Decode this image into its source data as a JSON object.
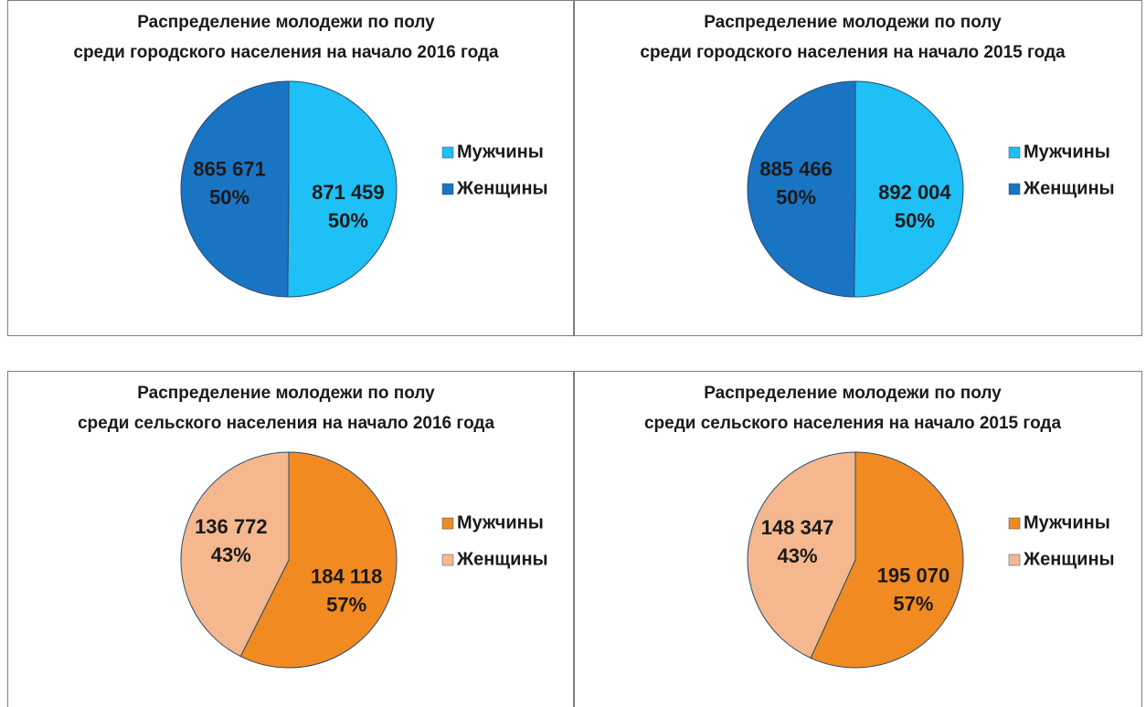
{
  "chart_data": [
    {
      "type": "pie",
      "title": [
        "Распределение молодежи по полу",
        "среди городского населения на начало 2016 года"
      ],
      "categories": [
        "Мужчины",
        "Женщины"
      ],
      "values": [
        871459,
        865671
      ],
      "value_labels": [
        "871 459",
        "865 671"
      ],
      "percentages": [
        50,
        50
      ],
      "percent_labels": [
        "50%",
        "50%"
      ],
      "colors": [
        "#1ec0f5",
        "#1a74c4"
      ],
      "legend": "right"
    },
    {
      "type": "pie",
      "title": [
        "Распределение молодежи по полу",
        "среди городского населения на начало 2015 года"
      ],
      "categories": [
        "Мужчины",
        "Женщины"
      ],
      "values": [
        892004,
        885466
      ],
      "value_labels": [
        "892 004",
        "885 466"
      ],
      "percentages": [
        50,
        50
      ],
      "percent_labels": [
        "50%",
        "50%"
      ],
      "colors": [
        "#1ec0f5",
        "#1a74c4"
      ],
      "legend": "right"
    },
    {
      "type": "pie",
      "title": [
        "Распределение молодежи по полу",
        "среди сельского населения на начало 2016 года"
      ],
      "categories": [
        "Мужчины",
        "Женщины"
      ],
      "values": [
        184118,
        136772
      ],
      "value_labels": [
        "184 118",
        "136 772"
      ],
      "percentages": [
        57,
        43
      ],
      "percent_labels": [
        "57%",
        "43%"
      ],
      "colors": [
        "#f28a22",
        "#f5b88e"
      ],
      "legend": "right"
    },
    {
      "type": "pie",
      "title": [
        "Распределение молодежи по полу",
        "среди сельского населения на начало 2015 года"
      ],
      "categories": [
        "Мужчины",
        "Женщины"
      ],
      "values": [
        195070,
        148347
      ],
      "value_labels": [
        "195 070",
        "148 347"
      ],
      "percentages": [
        57,
        43
      ],
      "percent_labels": [
        "57%",
        "43%"
      ],
      "colors": [
        "#f28a22",
        "#f5b88e"
      ],
      "legend": "right"
    }
  ]
}
